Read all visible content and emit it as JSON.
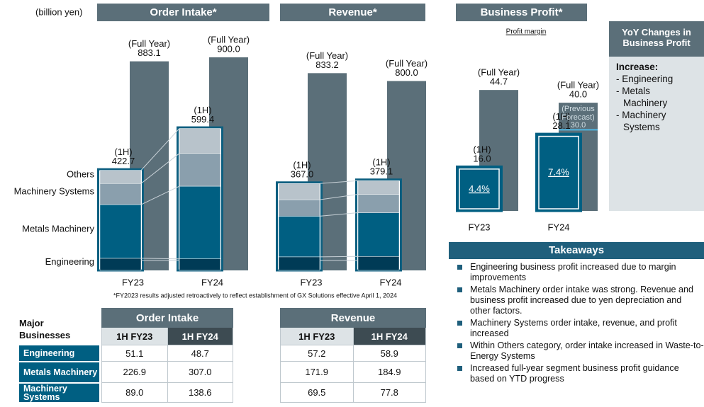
{
  "unit": "(billion yen)",
  "chart_data": [
    {
      "type": "bar",
      "title": "Order Intake*",
      "categories": [
        "FY23",
        "FY24"
      ],
      "ylim": [
        0,
        900
      ],
      "series": [
        {
          "name": "(Full Year)",
          "color": "#5b6f79",
          "values": [
            883.1,
            900.0
          ],
          "value_labels": [
            "883.1",
            "900.0"
          ]
        },
        {
          "name": "(1H)",
          "color": "#0d5f80",
          "values": [
            422.7,
            599.4
          ],
          "value_labels": [
            "422.7",
            "599.4"
          ]
        }
      ],
      "segments": [
        {
          "name": "Engineering",
          "color": "#003b56",
          "values": [
            51.1,
            48.7
          ]
        },
        {
          "name": "Metals Machinery",
          "color": "#005f82",
          "values": [
            226.9,
            307.0
          ]
        },
        {
          "name": "Machinery Systems",
          "color": "#8a9fad",
          "values": [
            89.0,
            138.6
          ]
        },
        {
          "name": "Others",
          "color": "#b8c3cb",
          "values": [
            55.7,
            105.1
          ]
        }
      ]
    },
    {
      "type": "bar",
      "title": "Revenue*",
      "categories": [
        "FY23",
        "FY24"
      ],
      "ylim": [
        0,
        900
      ],
      "series": [
        {
          "name": "(Full Year)",
          "color": "#5b6f79",
          "values": [
            833.2,
            800.0
          ],
          "value_labels": [
            "833.2",
            "800.0"
          ]
        },
        {
          "name": "(1H)",
          "color": "#0d5f80",
          "values": [
            367.0,
            379.1
          ],
          "value_labels": [
            "367.0",
            "379.1"
          ]
        }
      ],
      "segments": [
        {
          "color": "#003b56",
          "values": [
            57.2,
            58.9
          ]
        },
        {
          "color": "#005f82",
          "values": [
            171.9,
            184.9
          ]
        },
        {
          "color": "#8a9fad",
          "values": [
            69.5,
            77.8
          ]
        },
        {
          "color": "#b8c3cb",
          "values": [
            68.4,
            57.5
          ]
        }
      ]
    },
    {
      "type": "profit",
      "title": "Business Profit*",
      "subtitle": "Profit margin",
      "categories": [
        "FY23",
        "FY24"
      ],
      "ylim": [
        0,
        45
      ],
      "series": [
        {
          "name": "(Full Year)",
          "color": "#5b6f79",
          "values": [
            44.7,
            40.0
          ],
          "value_labels": [
            "44.7",
            "40.0"
          ]
        },
        {
          "name": "(1H)",
          "color": "#005f82",
          "values": [
            16.0,
            28.1
          ],
          "value_labels": [
            "16.0",
            "28.1"
          ]
        }
      ],
      "margins": [
        4.4,
        7.4
      ],
      "margin_labels": [
        "4.4%",
        "7.4%"
      ],
      "previous_forecast": {
        "label": [
          "(Previous",
          "Forecast)"
        ],
        "value": 30.0,
        "value_label": "30.0",
        "color": "#4fb6e3"
      }
    }
  ],
  "footnote": "*FY2023 results adjusted retroactively to reflect establishment of GX Solutions effective April 1, 2024",
  "yoy": {
    "title": "YoY Changes in Business Profit",
    "heading": "Increase:",
    "items": [
      "- Engineering",
      "- Metals Machinery",
      "- Machinery Systems"
    ]
  },
  "takeaways": {
    "title": "Takeaways",
    "items": [
      "Engineering business profit increased due to margin improvements",
      "Metals Machinery order intake was strong. Revenue and business profit increased due to yen depreciation and other factors.",
      "Machinery Systems order intake, revenue, and profit increased",
      "Within Others category, order intake increased in Waste-to-Energy Systems",
      "Increased full-year segment business profit guidance based on YTD progress"
    ]
  },
  "tables": {
    "row_header": "Major Businesses",
    "row_labels": [
      "Engineering",
      "Metals Machinery",
      "Machinery Systems"
    ],
    "order_intake": {
      "title": "Order Intake",
      "columns": [
        "1H FY23",
        "1H FY24"
      ],
      "rows": [
        [
          "51.1",
          "48.7"
        ],
        [
          "226.9",
          "307.0"
        ],
        [
          "89.0",
          "138.6"
        ]
      ]
    },
    "revenue": {
      "title": "Revenue",
      "columns": [
        "1H FY23",
        "1H FY24"
      ],
      "rows": [
        [
          "57.2",
          "58.9"
        ],
        [
          "171.9",
          "184.9"
        ],
        [
          "69.5",
          "77.8"
        ]
      ]
    }
  }
}
